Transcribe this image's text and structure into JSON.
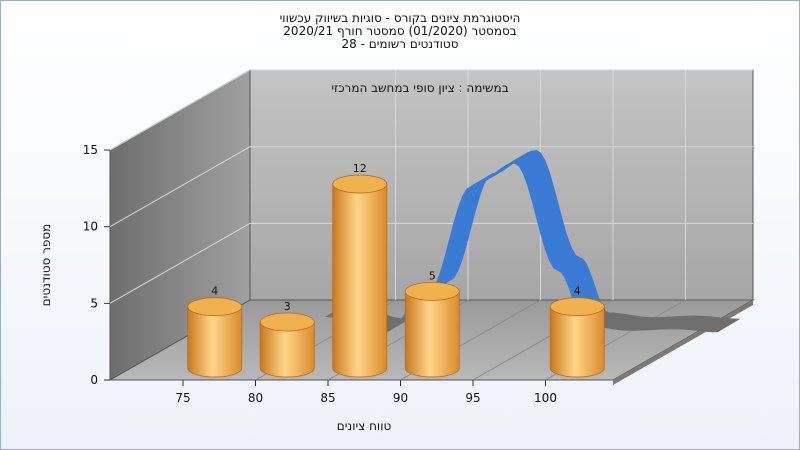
{
  "chart_data": {
    "type": "bar",
    "title_lines": [
      "היסטוגרמת ציונים בקורס - סוגיות בשיווק עכשווי",
      "בסמסטר  (01/2020)  סמסטר חורף 2020/21",
      "סטודנטים רשומים - 28"
    ],
    "annotation": "במשימה : ציון סופי במחשב המרכזי",
    "xlabel": "טווח ציונים",
    "ylabel": "מספר סטודנטים",
    "x_ticks": [
      "75",
      "80",
      "85",
      "90",
      "95",
      "100"
    ],
    "y_ticks": [
      "0",
      "5",
      "10",
      "15"
    ],
    "ylim": [
      0,
      15
    ],
    "bars": [
      {
        "x": 76.5,
        "value": 4
      },
      {
        "x": 81.5,
        "value": 3
      },
      {
        "x": 86.5,
        "value": 12
      },
      {
        "x": 91.5,
        "value": 5
      },
      {
        "x": 101.5,
        "value": 4
      }
    ],
    "curve": {
      "x": [
        79,
        83,
        86,
        89,
        92,
        95,
        97,
        100,
        103,
        106
      ],
      "y": [
        1,
        0,
        2.5,
        9.5,
        11,
        4,
        0.4,
        0.1,
        0.2,
        0
      ]
    },
    "colors": {
      "bar": "#f0b24e",
      "bar_dark": "#b86a18",
      "curve_high": "#3a7bd5",
      "curve_low": "#6f6f6f",
      "back_wall": "#b3b3b3",
      "side_wall": "#8c8c8c",
      "floor": "#a8a8a8"
    },
    "grid": true,
    "legend": "none"
  }
}
